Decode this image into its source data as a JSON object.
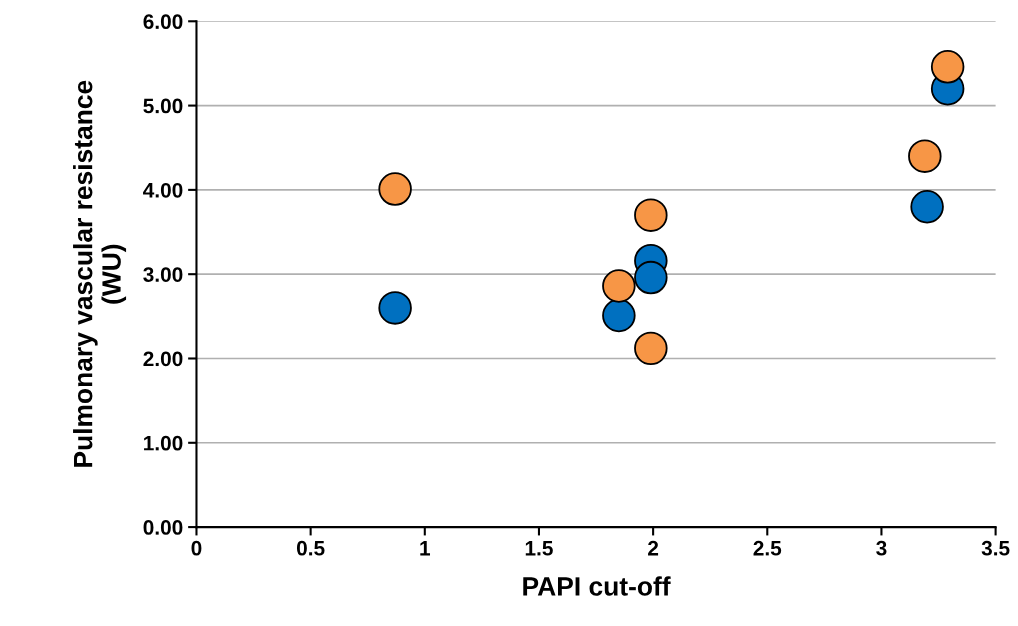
{
  "chart_data": {
    "type": "scatter",
    "xlabel": "PAPI cut-off",
    "ylabel": "Pulmonary vascular resistance\n(WU)",
    "series": [
      {
        "color": "#0070c0",
        "x": [
          0.87,
          1.85,
          1.99,
          1.99,
          3.2,
          3.29
        ],
        "values": [
          2.6,
          2.51,
          3.16,
          2.96,
          3.8,
          5.2
        ]
      },
      {
        "color": "#f79646",
        "x": [
          0.87,
          1.85,
          1.99,
          1.99,
          3.19,
          3.29
        ],
        "values": [
          4.01,
          2.86,
          3.7,
          2.12,
          4.4,
          5.46
        ]
      }
    ],
    "xlim": [
      0,
      3.5
    ],
    "xticks": [
      0,
      0.5,
      1,
      1.5,
      2,
      2.5,
      3,
      3.5
    ],
    "ylim": [
      0,
      6
    ],
    "yticks": [
      {
        "value": 0,
        "label": "0.00"
      },
      {
        "value": 1,
        "label": "1.00"
      },
      {
        "value": 2,
        "label": "2.00"
      },
      {
        "value": 3,
        "label": "3.00"
      },
      {
        "value": 4,
        "label": "4.00"
      },
      {
        "value": 5,
        "label": "5.00"
      },
      {
        "value": 6,
        "label": "6.00"
      }
    ],
    "grid": "y",
    "marker": "circle"
  }
}
